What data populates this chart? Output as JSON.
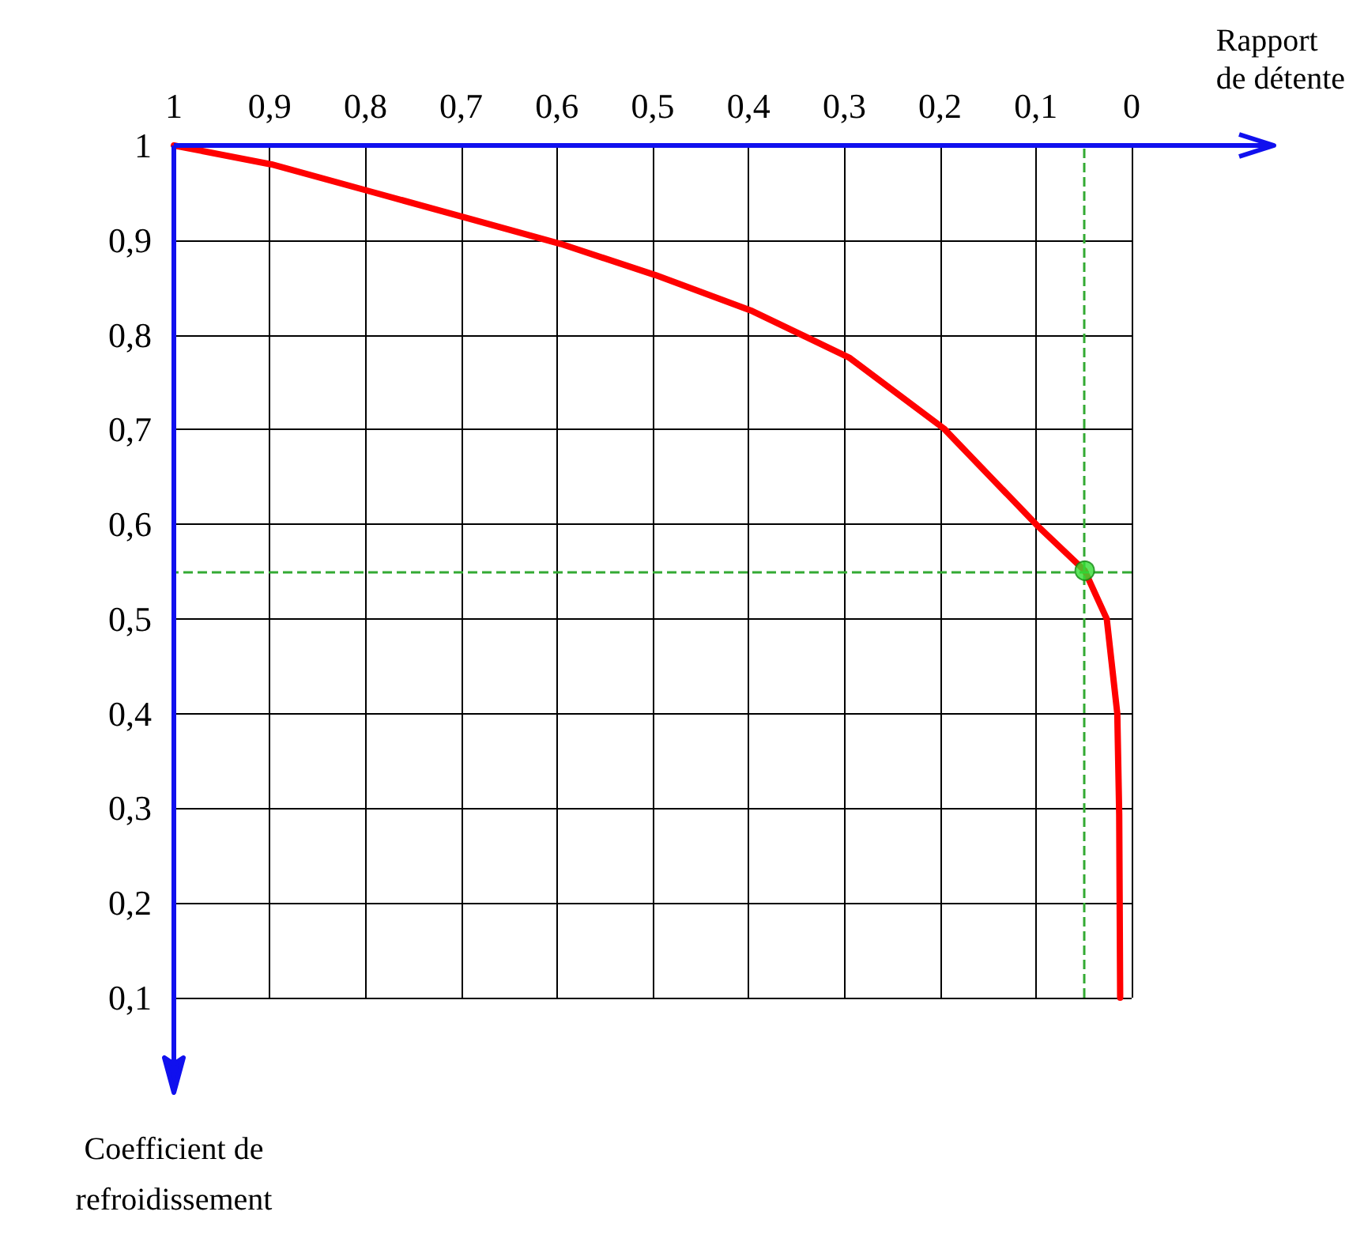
{
  "chart_data": {
    "type": "line",
    "xlabel": "Rapport\nde détente",
    "ylabel": "Coefficient de\nrefroidissement",
    "series": [
      {
        "color": "#ff0000",
        "x": [
          1,
          0.898,
          0.797,
          0.696,
          0.596,
          0.497,
          0.396,
          0.295,
          0.196,
          0.097,
          0.049,
          0.026,
          0.015,
          0.013,
          0.012
        ],
        "values": [
          1,
          0.98,
          0.952,
          0.924,
          0.896,
          0.863,
          0.825,
          0.776,
          0.701,
          0.597,
          0.551,
          0.5,
          0.4,
          0.293,
          0.1
        ]
      },
      {
        "type": "scatter",
        "marker": "circle",
        "color": "#33dd33",
        "x": [
          0.049
        ],
        "values": [
          0.551
        ]
      }
    ],
    "xlim": [
      1,
      0
    ],
    "ylim": [
      0.1,
      1
    ],
    "xticks": [
      1,
      {
        "value": 0.9,
        "label": "0,9"
      },
      {
        "value": 0.8,
        "label": "0,8"
      },
      {
        "value": 0.7,
        "label": "0,7"
      },
      {
        "value": 0.6,
        "label": "0,6"
      },
      {
        "value": 0.5,
        "label": "0,5"
      },
      {
        "value": 0.4,
        "label": "0,4"
      },
      {
        "value": 0.3,
        "label": "0,3"
      },
      {
        "value": 0.2,
        "label": "0,2"
      },
      {
        "value": 0.1,
        "label": "0,1"
      },
      0
    ],
    "yticks": [
      {
        "value": 0.1,
        "label": "0,1"
      },
      {
        "value": 0.2,
        "label": "0,2"
      },
      {
        "value": 0.3,
        "label": "0,3"
      },
      {
        "value": 0.4,
        "label": "0,4"
      },
      {
        "value": 0.5,
        "label": "0,5"
      },
      {
        "value": 0.6,
        "label": "0,6"
      },
      {
        "value": 0.7,
        "label": "0,7"
      },
      {
        "value": 0.8,
        "label": "0,8"
      },
      {
        "value": 0.9,
        "label": "0,9"
      },
      1
    ],
    "ref_lines": [
      {
        "axis": "x",
        "value": 0.049,
        "color": "#33aa33",
        "line_style": "dashed"
      },
      {
        "axis": "y",
        "value": 0.551,
        "color": "#33aa33",
        "line_style": "dashed"
      }
    ],
    "grid": true,
    "marker": "none",
    "line_style": "solid"
  }
}
